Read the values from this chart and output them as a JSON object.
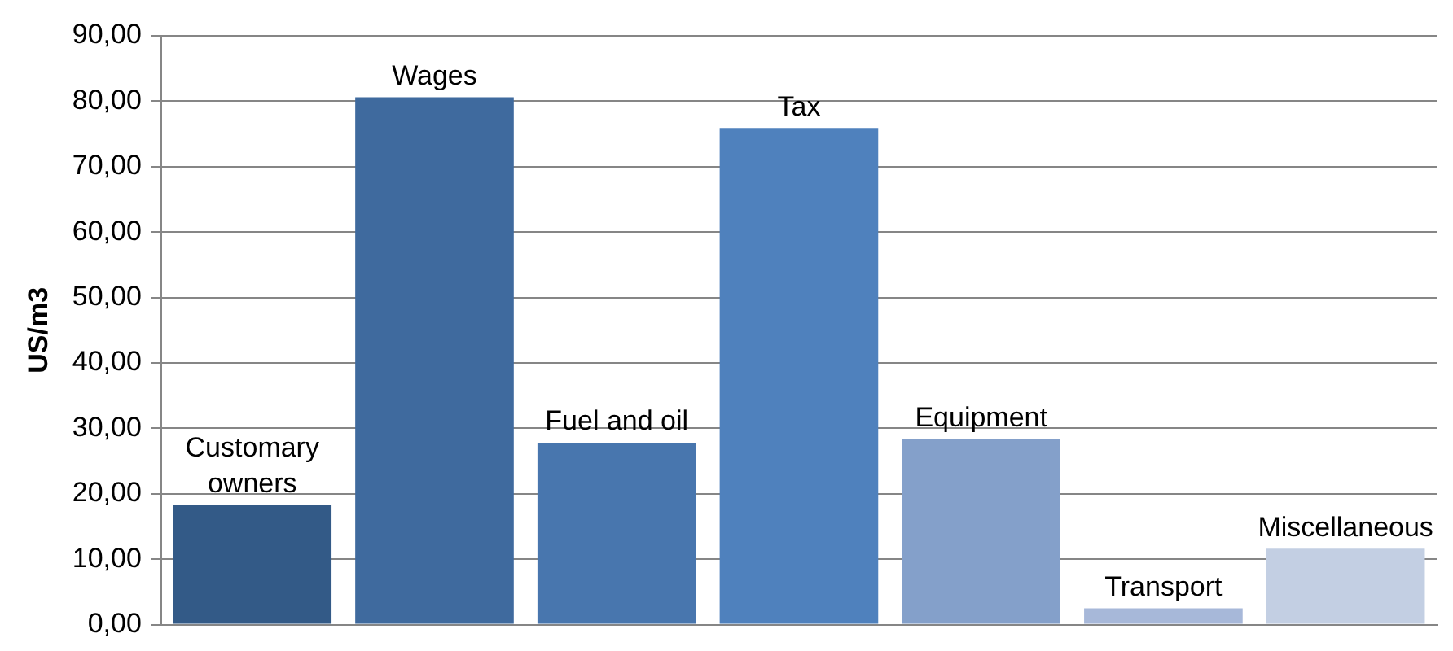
{
  "chart_data": {
    "type": "bar",
    "ylabel": "US/m3",
    "categories": [
      "Customary owners",
      "Wages",
      "Fuel and oil",
      "Tax",
      "Equipment",
      "Transport",
      "Miscellaneous"
    ],
    "values": [
      18.3,
      80.6,
      27.8,
      75.9,
      28.3,
      2.5,
      11.6
    ],
    "colors": [
      "#335a87",
      "#3f6a9e",
      "#4876ae",
      "#4f81bd",
      "#84a0ca",
      "#a7b8d9",
      "#c3cfe3"
    ],
    "ylim": [
      0,
      90
    ],
    "yticks": [
      {
        "value": 0,
        "label": "0,00"
      },
      {
        "value": 10,
        "label": "10,00"
      },
      {
        "value": 20,
        "label": "20,00"
      },
      {
        "value": 30,
        "label": "30,00"
      },
      {
        "value": 40,
        "label": "40,00"
      },
      {
        "value": 50,
        "label": "50,00"
      },
      {
        "value": 60,
        "label": "60,00"
      },
      {
        "value": 70,
        "label": "70,00"
      },
      {
        "value": 80,
        "label": "80,00"
      },
      {
        "value": 90,
        "label": "90,00"
      }
    ],
    "grid": "y",
    "tick_labels": "y"
  }
}
